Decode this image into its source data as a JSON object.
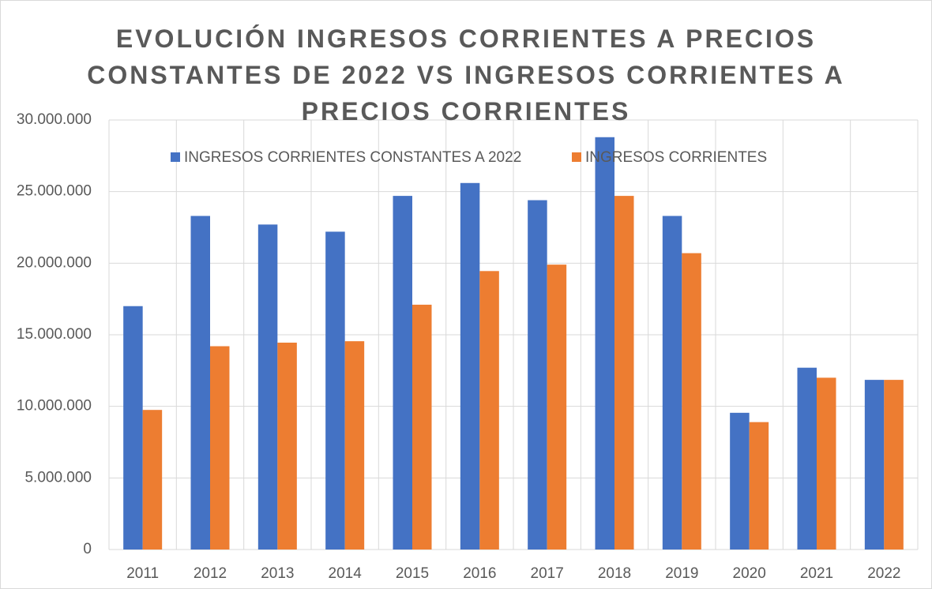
{
  "chart_data": {
    "type": "bar",
    "title": "EVOLUCIÓN INGRESOS CORRIENTES A PRECIOS CONSTANTES DE 2022 VS INGRESOS CORRIENTES A PRECIOS CORRIENTES",
    "categories": [
      "2011",
      "2012",
      "2013",
      "2014",
      "2015",
      "2016",
      "2017",
      "2018",
      "2019",
      "2020",
      "2021",
      "2022"
    ],
    "series": [
      {
        "name": "INGRESOS CORRIENTES CONSTANTES A 2022",
        "color": "#4472c4",
        "values": [
          17000000,
          23300000,
          22700000,
          22200000,
          24700000,
          25600000,
          24400000,
          28800000,
          23300000,
          9550000,
          12700000,
          11850000
        ]
      },
      {
        "name": "INGRESOS CORRIENTES",
        "color": "#ed7d31",
        "values": [
          9750000,
          14200000,
          14450000,
          14550000,
          17100000,
          19450000,
          19900000,
          24700000,
          20700000,
          8900000,
          12000000,
          11850000
        ]
      }
    ],
    "ylim": [
      0,
      30000000
    ],
    "yticks": [
      0,
      {
        "value": 5000000,
        "label": "5.000.000"
      },
      {
        "value": 10000000,
        "label": "10.000.000"
      },
      {
        "value": 15000000,
        "label": "15.000.000"
      },
      {
        "value": 20000000,
        "label": "20.000.000"
      },
      {
        "value": 25000000,
        "label": "25.000.000"
      },
      {
        "value": 30000000,
        "label": "30.000.000"
      }
    ],
    "grid": true,
    "legend": "top"
  }
}
